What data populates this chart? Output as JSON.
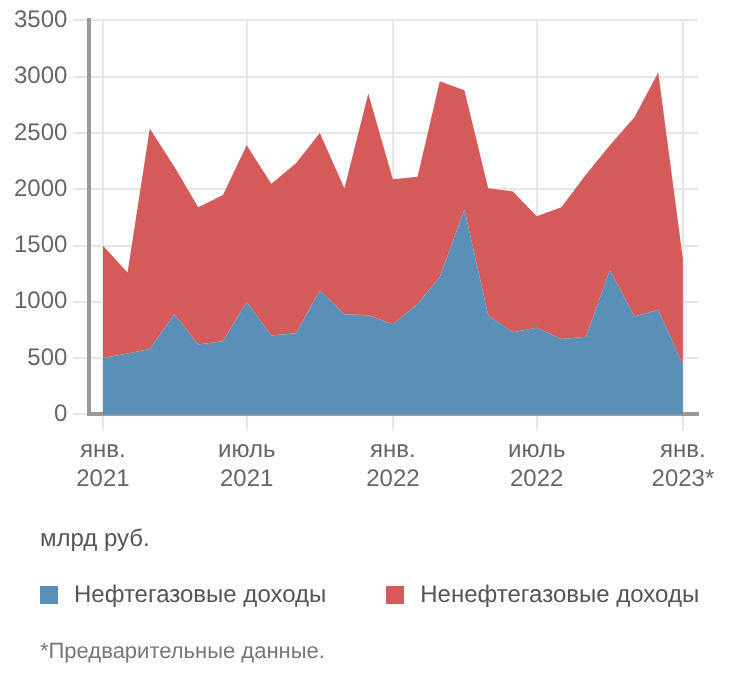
{
  "chart_data": {
    "type": "area",
    "stacked": true,
    "ylabel": "млрд руб.",
    "x": [
      "2021-01",
      "2021-02",
      "2021-03",
      "2021-04",
      "2021-05",
      "2021-06",
      "2021-07",
      "2021-08",
      "2021-09",
      "2021-10",
      "2021-11",
      "2021-12",
      "2022-01",
      "2022-02",
      "2022-03",
      "2022-04",
      "2022-05",
      "2022-06",
      "2022-07",
      "2022-08",
      "2022-09",
      "2022-10",
      "2022-11",
      "2022-12",
      "2023-01"
    ],
    "series": [
      {
        "name": "Нефтегазовые доходы",
        "color": "#5a8fb8",
        "values": [
          500,
          540,
          580,
          890,
          620,
          650,
          1000,
          700,
          720,
          1100,
          890,
          880,
          800,
          980,
          1220,
          1820,
          880,
          730,
          770,
          670,
          690,
          1280,
          870,
          930,
          440
        ]
      },
      {
        "name": "Ненефтегазовые доходы",
        "color": "#d55a5a",
        "values": [
          1000,
          720,
          1960,
          1310,
          1220,
          1300,
          1390,
          1350,
          1510,
          1400,
          1120,
          1970,
          1290,
          1130,
          1740,
          1060,
          1130,
          1250,
          990,
          1170,
          1440,
          1110,
          1770,
          2110,
          940
        ]
      }
    ],
    "xlim": [
      "2020-12-15",
      "2023-01-20"
    ],
    "xticks": [
      {
        "value": "2021-01",
        "label": "янв.\n2021"
      },
      {
        "value": "2021-07",
        "label": "июль\n2021"
      },
      {
        "value": "2022-01",
        "label": "янв.\n2022"
      },
      {
        "value": "2022-07",
        "label": "июль\n2022"
      },
      {
        "value": "2023-01",
        "label": "янв.\n2023*"
      }
    ],
    "ylim": [
      0,
      3500
    ],
    "yticks": [
      0,
      500,
      1000,
      1500,
      2000,
      2500,
      3000,
      3500
    ],
    "grid": true,
    "legend": "bottom",
    "annotations": [
      "*Предварительные данные."
    ]
  }
}
